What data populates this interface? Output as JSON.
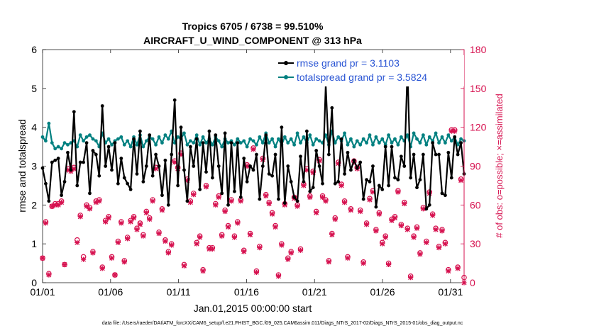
{
  "chart_data": {
    "type": "line",
    "title_line1": "Tropics 6705 / 6738 = 99.510%",
    "title_line2": "AIRCRAFT_U_WIND_COMPONENT @ 313 hPa",
    "xlabel": "Jan.01,2015 00:00:00 start",
    "ylabel_left": "rmse and totalspread",
    "ylabel_right": "# of obs: o=possible; ×=assimilated",
    "footer": "data file: /Users/raeder/DAI/ATM_forcXX/CAM6_setup/f.e21.FHIST_BGC.f09_025.CAM6assim.011/Diags_NTrS_2017-02/Diags_NTrS_2015-01/obs_diag_output.nc",
    "x_ticks": [
      {
        "day": 1,
        "label": "01/01"
      },
      {
        "day": 6,
        "label": "01/06"
      },
      {
        "day": 11,
        "label": "01/11"
      },
      {
        "day": 16,
        "label": "01/16"
      },
      {
        "day": 21,
        "label": "01/21"
      },
      {
        "day": 26,
        "label": "01/26"
      },
      {
        "day": 31,
        "label": "01/31"
      }
    ],
    "xlim": [
      1,
      32
    ],
    "ylim_left": [
      0,
      6
    ],
    "ylim_right": [
      0,
      180
    ],
    "y_ticks_left": [
      "0",
      "1",
      "2",
      "3",
      "4",
      "5",
      "6"
    ],
    "y_ticks_right": [
      "0",
      "30",
      "60",
      "90",
      "120",
      "150",
      "180"
    ],
    "legend": [
      {
        "label": "rmse grand pr = 3.1103"
      },
      {
        "label": "totalspread grand pr = 3.5824"
      }
    ],
    "colors": {
      "rmse": "#000000",
      "spread": "#008080",
      "obs": "#d6114f"
    },
    "series": [
      {
        "name": "rmse",
        "values": [
          2.95,
          2.55,
          2.1,
          3.1,
          3.15,
          3.2,
          2.25,
          2.6,
          3.35,
          2.9,
          4.4,
          2.5,
          3.1,
          3.1,
          3.6,
          2.3,
          3.4,
          3.3,
          2.75,
          4.55,
          3.0,
          3.5,
          2.9,
          3.6,
          2.55,
          3.2,
          2.7,
          2.55,
          2.4,
          3.7,
          2.8,
          3.9,
          2.6,
          3.0,
          3.8,
          2.75,
          3.3,
          3.0,
          2.25,
          3.15,
          2.0,
          3.3,
          4.7,
          2.5,
          4.0,
          2.9,
          2.1,
          3.5,
          3.0,
          3.7,
          2.4,
          3.6,
          2.85,
          3.9,
          2.7,
          3.8,
          3.0,
          2.3,
          3.85,
          2.0,
          3.6,
          2.35,
          3.6,
          2.2,
          3.2,
          2.6,
          3.0,
          2.9,
          3.3,
          2.15,
          3.0,
          3.8,
          2.8,
          2.75,
          3.3,
          2.15,
          4.0,
          2.05,
          3.0,
          2.6,
          2.2,
          2.1,
          3.25,
          2.6,
          3.9,
          2.35,
          2.45,
          3.4,
          3.0,
          2.55,
          5.1,
          3.3,
          4.5,
          2.55,
          2.6,
          3.7,
          2.8,
          3.35,
          2.9,
          3.15,
          2.95,
          3.1,
          2.15,
          2.65,
          2.6,
          3.0,
          1.95,
          2.5,
          2.4,
          3.5,
          2.5,
          3.5,
          2.7,
          2.65,
          3.25,
          3.0,
          5.5,
          2.7,
          3.3,
          2.45,
          2.65,
          3.3,
          1.9,
          2.0,
          3.6,
          3.3,
          3.3,
          2.3,
          2.25,
          3.35,
          2.7,
          3.75,
          3.3,
          3.6,
          2.8
        ]
      },
      {
        "name": "totalspread",
        "values": [
          3.75,
          3.65,
          4.1,
          3.6,
          3.45,
          3.5,
          3.45,
          3.6,
          3.55,
          3.6,
          3.65,
          3.5,
          3.8,
          3.65,
          3.75,
          3.8,
          3.7,
          3.65,
          3.5,
          3.85,
          3.6,
          3.7,
          3.55,
          3.65,
          3.7,
          3.75,
          3.55,
          3.65,
          3.5,
          3.75,
          3.55,
          3.8,
          3.5,
          3.65,
          3.75,
          3.7,
          3.55,
          3.75,
          3.6,
          3.8,
          3.7,
          3.9,
          3.6,
          3.75,
          3.7,
          3.85,
          3.55,
          3.65,
          3.6,
          3.8,
          3.55,
          3.75,
          3.6,
          3.7,
          3.55,
          3.75,
          3.65,
          3.5,
          3.7,
          3.6,
          3.65,
          3.55,
          3.7,
          3.6,
          3.65,
          3.5,
          3.7,
          3.65,
          3.55,
          3.75,
          3.6,
          3.85,
          3.6,
          3.7,
          3.5,
          3.7,
          3.55,
          3.75,
          3.6,
          3.7,
          3.55,
          3.85,
          3.6,
          3.75,
          3.6,
          3.8,
          3.55,
          3.7,
          3.65,
          3.6,
          3.8,
          3.55,
          3.9,
          3.6,
          3.75,
          3.65,
          3.85,
          3.55,
          3.7,
          3.5,
          3.65,
          3.55,
          3.7,
          3.6,
          3.8,
          3.55,
          3.75,
          3.6,
          3.7,
          3.55,
          3.8,
          3.6,
          3.7,
          3.55,
          3.75,
          3.65,
          3.8,
          3.5,
          3.85,
          3.7,
          3.6,
          3.8,
          3.55,
          3.75,
          3.65,
          3.85,
          3.6,
          3.75,
          3.6,
          3.8,
          3.65,
          3.75,
          3.55,
          3.7,
          3.65
        ]
      },
      {
        "name": "obs_possible",
        "values": [
          19,
          47,
          7,
          59,
          61,
          61,
          63,
          14,
          88,
          87,
          89,
          33,
          52,
          20,
          60,
          58,
          24,
          63,
          64,
          12,
          48,
          51,
          20,
          6,
          32,
          47,
          17,
          35,
          48,
          51,
          42,
          46,
          37,
          55,
          50,
          64,
          89,
          39,
          57,
          33,
          24,
          30,
          94,
          89,
          100,
          14,
          80,
          63,
          69,
          31,
          36,
          10,
          75,
          27,
          27,
          61,
          67,
          37,
          56,
          44,
          64,
          36,
          47,
          64,
          25,
          91,
          38,
          104,
          9,
          28,
          96,
          68,
          62,
          54,
          44,
          6,
          30,
          61,
          19,
          24,
          66,
          60,
          26,
          76,
          88,
          67,
          86,
          55,
          95,
          67,
          64,
          17,
          38,
          50,
          93,
          76,
          63,
          20,
          57,
          94,
          89,
          56,
          16,
          46,
          65,
          71,
          41,
          54,
          31,
          36,
          15,
          49,
          51,
          71,
          45,
          62,
          42,
          5,
          36,
          43,
          23,
          58,
          32,
          70,
          53,
          42,
          28,
          41,
          31,
          10,
          118,
          118,
          12,
          80,
          4
        ]
      },
      {
        "name": "obs_assimilated",
        "values": [
          19,
          46,
          6,
          59,
          60,
          60,
          62,
          14,
          87,
          86,
          88,
          31,
          51,
          18,
          59,
          57,
          23,
          62,
          63,
          11,
          47,
          50,
          19,
          6,
          31,
          46,
          16,
          34,
          47,
          50,
          41,
          45,
          36,
          54,
          49,
          63,
          88,
          38,
          56,
          32,
          23,
          29,
          93,
          88,
          99,
          13,
          79,
          62,
          68,
          30,
          35,
          9,
          74,
          26,
          26,
          60,
          66,
          36,
          55,
          43,
          63,
          35,
          46,
          63,
          24,
          90,
          37,
          103,
          8,
          27,
          95,
          67,
          61,
          53,
          43,
          5,
          29,
          60,
          18,
          23,
          65,
          59,
          25,
          75,
          87,
          66,
          85,
          54,
          94,
          66,
          63,
          16,
          37,
          49,
          92,
          75,
          62,
          19,
          56,
          93,
          88,
          55,
          15,
          45,
          64,
          70,
          40,
          53,
          30,
          35,
          14,
          48,
          50,
          70,
          44,
          61,
          41,
          4,
          35,
          42,
          22,
          57,
          31,
          69,
          52,
          41,
          27,
          40,
          30,
          9,
          117,
          117,
          11,
          79,
          0
        ]
      }
    ]
  }
}
